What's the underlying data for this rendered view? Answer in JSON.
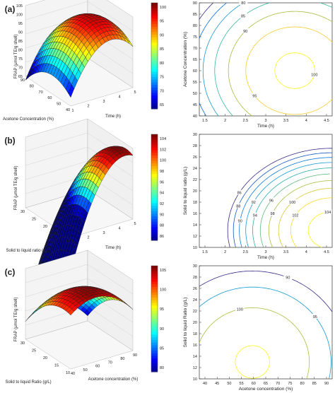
{
  "figure": {
    "panels": [
      {
        "label": "(a)",
        "surface": {
          "zlabel": "FRAP (μmol TE/g shell)",
          "xlabel": "Acetone Concentration (%)",
          "ylabel": "Time (h)",
          "zticks": [
            "65",
            "70",
            "75",
            "80",
            "85",
            "90",
            "95",
            "100",
            "105"
          ],
          "xticks": [
            "90",
            "80",
            "70",
            "60",
            "50",
            "40"
          ],
          "yticks": [
            "1",
            "2",
            "3",
            "4",
            "5"
          ],
          "colorbar_ticks": [
            "100",
            "95",
            "90",
            "85",
            "80",
            "75",
            "70",
            "65"
          ],
          "colorbar_range": [
            63,
            104
          ]
        },
        "contour": {
          "xlabel": "Time (h)",
          "ylabel": "Acetone Concentration (%)",
          "xticks": [
            "1.5",
            "2",
            "2.5",
            "3",
            "3.5",
            "4",
            "4.5"
          ],
          "yticks": [
            "90",
            "85",
            "80",
            "75",
            "70",
            "65",
            "60",
            "55",
            "50",
            "45",
            "40"
          ],
          "levels": [
            "70",
            "75",
            "80",
            "85",
            "90",
            "95",
            "100"
          ]
        }
      },
      {
        "label": "(b)",
        "surface": {
          "zlabel": "FRAP (μmol TE/g shell)",
          "xlabel": "Solid to liquid ratio (g/L)",
          "ylabel": "Time (h)",
          "zticks": [
            "",
            "",
            ""
          ],
          "xticks": [
            "30",
            "25",
            "20",
            "15",
            "10"
          ],
          "yticks": [
            "1",
            "2",
            "3",
            "4",
            "5"
          ],
          "colorbar_ticks": [
            "104",
            "102",
            "100",
            "98",
            "96",
            "94",
            "92",
            "90",
            "88",
            "86"
          ],
          "colorbar_range": [
            85,
            105
          ]
        },
        "contour": {
          "xlabel": "Time (h)",
          "ylabel": "Solid to liquid ratio (g/L)",
          "xticks": [
            "1.5",
            "2",
            "2.5",
            "3",
            "3.5",
            "4",
            "4.5"
          ],
          "yticks": [
            "30",
            "28",
            "26",
            "24",
            "22",
            "20",
            "18",
            "16",
            "14",
            "12",
            "10"
          ],
          "levels": [
            "86",
            "88",
            "90",
            "92",
            "94",
            "96",
            "98",
            "100",
            "102",
            "104"
          ]
        }
      },
      {
        "label": "(c)",
        "surface": {
          "zlabel": "FRAP (μmol TE/g shell)",
          "xlabel": "Solid to liquid Ratio (g/L)",
          "ylabel": "Acetone concentration (%)",
          "zticks": [
            "",
            ""
          ],
          "xticks": [
            "30",
            "25",
            "20",
            "15",
            "10"
          ],
          "yticks": [
            "40",
            "50",
            "60",
            "70",
            "80",
            "90"
          ],
          "colorbar_ticks": [
            "105",
            "100",
            "95",
            "90",
            "85",
            "80"
          ],
          "colorbar_range": [
            77,
            106
          ]
        },
        "contour": {
          "xlabel": "Acetone concentration (%)",
          "ylabel": "Solid to liquid Ratio (g/L)",
          "xticks": [
            "40",
            "45",
            "50",
            "55",
            "60",
            "65",
            "70",
            "75",
            "80",
            "85",
            "90"
          ],
          "yticks": [
            "30",
            "28",
            "26",
            "24",
            "22",
            "20",
            "18",
            "16",
            "14",
            "12",
            "10"
          ],
          "levels": [
            "90",
            "95",
            "100",
            "105"
          ]
        }
      }
    ]
  },
  "chart_data": [
    {
      "type": "surface",
      "panel": "(a)",
      "x_name": "Time (h)",
      "y_name": "Acetone Concentration (%)",
      "xlim": [
        1,
        5
      ],
      "ylim": [
        40,
        90
      ],
      "model": {
        "f0": 101,
        "ax": 4.3,
        "x0": 3.6,
        "ay": 0.016,
        "y0": 60
      },
      "zlim": [
        60,
        105
      ]
    },
    {
      "type": "contour",
      "panel": "(a)",
      "x_name": "Time (h)",
      "y_name": "Acetone Concentration (%)",
      "xlim": [
        1.3,
        4.5
      ],
      "ylim": [
        40,
        90
      ],
      "model": {
        "f0": 101,
        "ax": 4.3,
        "x0": 3.6,
        "ay": 0.016,
        "y0": 60
      },
      "levels": [
        70,
        75,
        80,
        85,
        90,
        95,
        100
      ]
    },
    {
      "type": "surface",
      "panel": "(b)",
      "x_name": "Time (h)",
      "y_name": "Solid to liquid ratio (g/L)",
      "xlim": [
        1,
        5
      ],
      "ylim": [
        10,
        30
      ],
      "model": {
        "f0": 105,
        "ax": 3.0,
        "x0": 4.5,
        "ay": 0.09,
        "y0": 13
      },
      "zlim": [
        80,
        106
      ]
    },
    {
      "type": "contour",
      "panel": "(b)",
      "x_name": "Time (h)",
      "y_name": "Solid to liquid ratio (g/L)",
      "xlim": [
        1.3,
        4.5
      ],
      "ylim": [
        10,
        30
      ],
      "model": {
        "f0": 105,
        "ax": 3.0,
        "x0": 4.5,
        "ay": 0.09,
        "y0": 13
      },
      "levels": [
        86,
        88,
        90,
        92,
        94,
        96,
        98,
        100,
        102,
        104
      ]
    },
    {
      "type": "surface",
      "panel": "(c)",
      "x_name": "Acetone concentration (%)",
      "y_name": "Solid to liquid Ratio (g/L)",
      "xlim": [
        40,
        90
      ],
      "ylim": [
        10,
        30
      ],
      "model": {
        "f0": 105.5,
        "ax": 0.012,
        "x0": 60,
        "ay": 0.06,
        "y0": 13
      },
      "zlim": [
        75,
        108
      ]
    },
    {
      "type": "contour",
      "panel": "(c)",
      "x_name": "Acetone concentration (%)",
      "y_name": "Solid to liquid Ratio (g/L)",
      "xlim": [
        40,
        90
      ],
      "ylim": [
        10,
        30
      ],
      "model": {
        "f0": 105.5,
        "ax": 0.012,
        "x0": 60,
        "ay": 0.06,
        "y0": 13
      },
      "levels": [
        90,
        95,
        100,
        105
      ]
    }
  ]
}
